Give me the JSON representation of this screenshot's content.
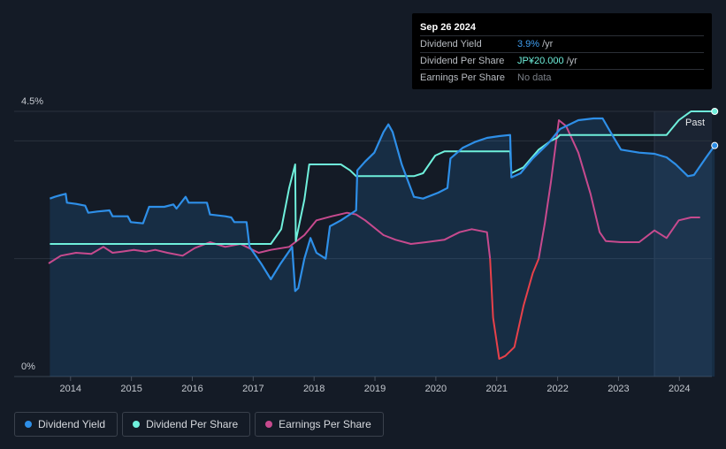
{
  "tooltip": {
    "date": "Sep 26 2024",
    "rows": [
      {
        "label": "Dividend Yield",
        "value": "3.9%",
        "unit": "/yr"
      },
      {
        "label": "Dividend Per Share",
        "value": "JP¥20.000",
        "unit": "/yr"
      },
      {
        "label": "Earnings Per Share",
        "value": "No data",
        "unit": ""
      }
    ]
  },
  "legend": [
    {
      "label": "Dividend Yield",
      "color": "#2e8fe8"
    },
    {
      "label": "Dividend Per Share",
      "color": "#6ff0dc"
    },
    {
      "label": "Earnings Per Share",
      "color": "#c74a8e"
    }
  ],
  "colors": {
    "yield": "#2e8fe8",
    "dps": "#6ff0dc",
    "eps": "#c74a8e",
    "eps_negative": "#e8414a",
    "grid": "#2a323e",
    "axis_text": "#c4c8cf"
  },
  "chart_data": {
    "type": "line",
    "title": "",
    "y_labels": [
      "4.5%",
      "0%"
    ],
    "past_label": "Past",
    "ylim": [
      0,
      4.5
    ],
    "xlim": [
      2013.8,
      2024.75
    ],
    "x_ticks": [
      "2014",
      "2015",
      "2016",
      "2017",
      "2018",
      "2019",
      "2020",
      "2021",
      "2022",
      "2023",
      "2024"
    ],
    "forecast_start": 2023.75,
    "series": [
      {
        "name": "Dividend Yield",
        "unit": "%",
        "points": [
          [
            2013.82,
            3.02
          ],
          [
            2013.9,
            3.05
          ],
          [
            2014.0,
            3.08
          ],
          [
            2014.08,
            3.1
          ],
          [
            2014.1,
            2.95
          ],
          [
            2014.25,
            2.93
          ],
          [
            2014.4,
            2.9
          ],
          [
            2014.45,
            2.78
          ],
          [
            2014.6,
            2.8
          ],
          [
            2014.8,
            2.82
          ],
          [
            2014.85,
            2.72
          ],
          [
            2015.0,
            2.72
          ],
          [
            2015.1,
            2.72
          ],
          [
            2015.15,
            2.62
          ],
          [
            2015.35,
            2.6
          ],
          [
            2015.45,
            2.88
          ],
          [
            2015.7,
            2.88
          ],
          [
            2015.85,
            2.92
          ],
          [
            2015.9,
            2.85
          ],
          [
            2016.05,
            3.05
          ],
          [
            2016.1,
            2.95
          ],
          [
            2016.4,
            2.95
          ],
          [
            2016.45,
            2.75
          ],
          [
            2016.7,
            2.72
          ],
          [
            2016.8,
            2.7
          ],
          [
            2016.85,
            2.62
          ],
          [
            2017.05,
            2.62
          ],
          [
            2017.1,
            2.2
          ],
          [
            2017.3,
            1.9
          ],
          [
            2017.45,
            1.65
          ],
          [
            2017.6,
            1.9
          ],
          [
            2017.8,
            2.2
          ],
          [
            2017.85,
            1.45
          ],
          [
            2017.9,
            1.5
          ],
          [
            2018.0,
            2.0
          ],
          [
            2018.1,
            2.35
          ],
          [
            2018.2,
            2.1
          ],
          [
            2018.35,
            2.0
          ],
          [
            2018.42,
            2.55
          ],
          [
            2018.6,
            2.65
          ],
          [
            2018.85,
            2.82
          ],
          [
            2018.87,
            3.5
          ],
          [
            2019.0,
            3.65
          ],
          [
            2019.15,
            3.8
          ],
          [
            2019.3,
            4.15
          ],
          [
            2019.38,
            4.28
          ],
          [
            2019.45,
            4.15
          ],
          [
            2019.6,
            3.6
          ],
          [
            2019.8,
            3.05
          ],
          [
            2019.95,
            3.02
          ],
          [
            2020.2,
            3.12
          ],
          [
            2020.35,
            3.2
          ],
          [
            2020.4,
            3.7
          ],
          [
            2020.6,
            3.88
          ],
          [
            2020.8,
            3.98
          ],
          [
            2021.0,
            4.05
          ],
          [
            2021.2,
            4.08
          ],
          [
            2021.38,
            4.1
          ],
          [
            2021.4,
            3.38
          ],
          [
            2021.55,
            3.45
          ],
          [
            2021.75,
            3.7
          ],
          [
            2022.0,
            3.95
          ],
          [
            2022.2,
            4.2
          ],
          [
            2022.5,
            4.35
          ],
          [
            2022.75,
            4.38
          ],
          [
            2022.9,
            4.38
          ],
          [
            2023.0,
            4.2
          ],
          [
            2023.2,
            3.85
          ],
          [
            2023.5,
            3.8
          ],
          [
            2023.75,
            3.78
          ],
          [
            2023.95,
            3.72
          ],
          [
            2024.1,
            3.6
          ],
          [
            2024.3,
            3.4
          ],
          [
            2024.4,
            3.42
          ],
          [
            2024.6,
            3.72
          ],
          [
            2024.74,
            3.92
          ]
        ]
      },
      {
        "name": "Dividend Per Share",
        "unit": "JP¥",
        "points": [
          [
            2013.82,
            2.25
          ],
          [
            2017.45,
            2.25
          ],
          [
            2017.62,
            2.5
          ],
          [
            2017.75,
            3.2
          ],
          [
            2017.85,
            3.6
          ],
          [
            2017.86,
            2.3
          ],
          [
            2018.0,
            3.0
          ],
          [
            2018.08,
            3.6
          ],
          [
            2018.6,
            3.6
          ],
          [
            2018.75,
            3.5
          ],
          [
            2018.85,
            3.4
          ],
          [
            2019.8,
            3.4
          ],
          [
            2019.95,
            3.45
          ],
          [
            2020.15,
            3.75
          ],
          [
            2020.3,
            3.82
          ],
          [
            2021.38,
            3.82
          ],
          [
            2021.4,
            3.45
          ],
          [
            2021.6,
            3.55
          ],
          [
            2021.85,
            3.85
          ],
          [
            2022.05,
            4.0
          ],
          [
            2022.15,
            4.05
          ],
          [
            2022.2,
            4.1
          ],
          [
            2023.95,
            4.1
          ],
          [
            2024.15,
            4.35
          ],
          [
            2024.35,
            4.5
          ],
          [
            2024.74,
            4.5
          ]
        ]
      },
      {
        "name": "Earnings Per Share",
        "unit": "JP¥",
        "points": [
          [
            2013.8,
            1.92
          ],
          [
            2014.0,
            2.05
          ],
          [
            2014.25,
            2.1
          ],
          [
            2014.5,
            2.08
          ],
          [
            2014.7,
            2.2
          ],
          [
            2014.85,
            2.1
          ],
          [
            2015.0,
            2.12
          ],
          [
            2015.2,
            2.15
          ],
          [
            2015.4,
            2.12
          ],
          [
            2015.55,
            2.15
          ],
          [
            2015.75,
            2.1
          ],
          [
            2016.0,
            2.05
          ],
          [
            2016.2,
            2.18
          ],
          [
            2016.45,
            2.28
          ],
          [
            2016.7,
            2.2
          ],
          [
            2016.95,
            2.25
          ],
          [
            2017.05,
            2.2
          ],
          [
            2017.25,
            2.1
          ],
          [
            2017.45,
            2.15
          ],
          [
            2017.75,
            2.2
          ],
          [
            2018.0,
            2.4
          ],
          [
            2018.2,
            2.65
          ],
          [
            2018.45,
            2.72
          ],
          [
            2018.7,
            2.78
          ],
          [
            2018.85,
            2.75
          ],
          [
            2019.0,
            2.65
          ],
          [
            2019.3,
            2.4
          ],
          [
            2019.5,
            2.32
          ],
          [
            2019.75,
            2.25
          ],
          [
            2020.0,
            2.28
          ],
          [
            2020.3,
            2.32
          ],
          [
            2020.55,
            2.45
          ],
          [
            2020.75,
            2.5
          ],
          [
            2021.0,
            2.45
          ],
          [
            2021.05,
            2.0
          ],
          [
            2021.1,
            1.0
          ],
          [
            2021.2,
            0.3
          ],
          [
            2021.3,
            0.35
          ],
          [
            2021.45,
            0.5
          ],
          [
            2021.6,
            1.2
          ],
          [
            2021.75,
            1.75
          ],
          [
            2021.85,
            2.0
          ],
          [
            2021.95,
            2.6
          ],
          [
            2022.05,
            3.3
          ],
          [
            2022.18,
            4.35
          ],
          [
            2022.3,
            4.25
          ],
          [
            2022.5,
            3.8
          ],
          [
            2022.7,
            3.1
          ],
          [
            2022.85,
            2.45
          ],
          [
            2022.95,
            2.3
          ],
          [
            2023.2,
            2.28
          ],
          [
            2023.5,
            2.28
          ],
          [
            2023.75,
            2.48
          ],
          [
            2023.95,
            2.35
          ],
          [
            2024.15,
            2.65
          ],
          [
            2024.35,
            2.7
          ],
          [
            2024.5,
            2.7
          ]
        ]
      }
    ]
  }
}
